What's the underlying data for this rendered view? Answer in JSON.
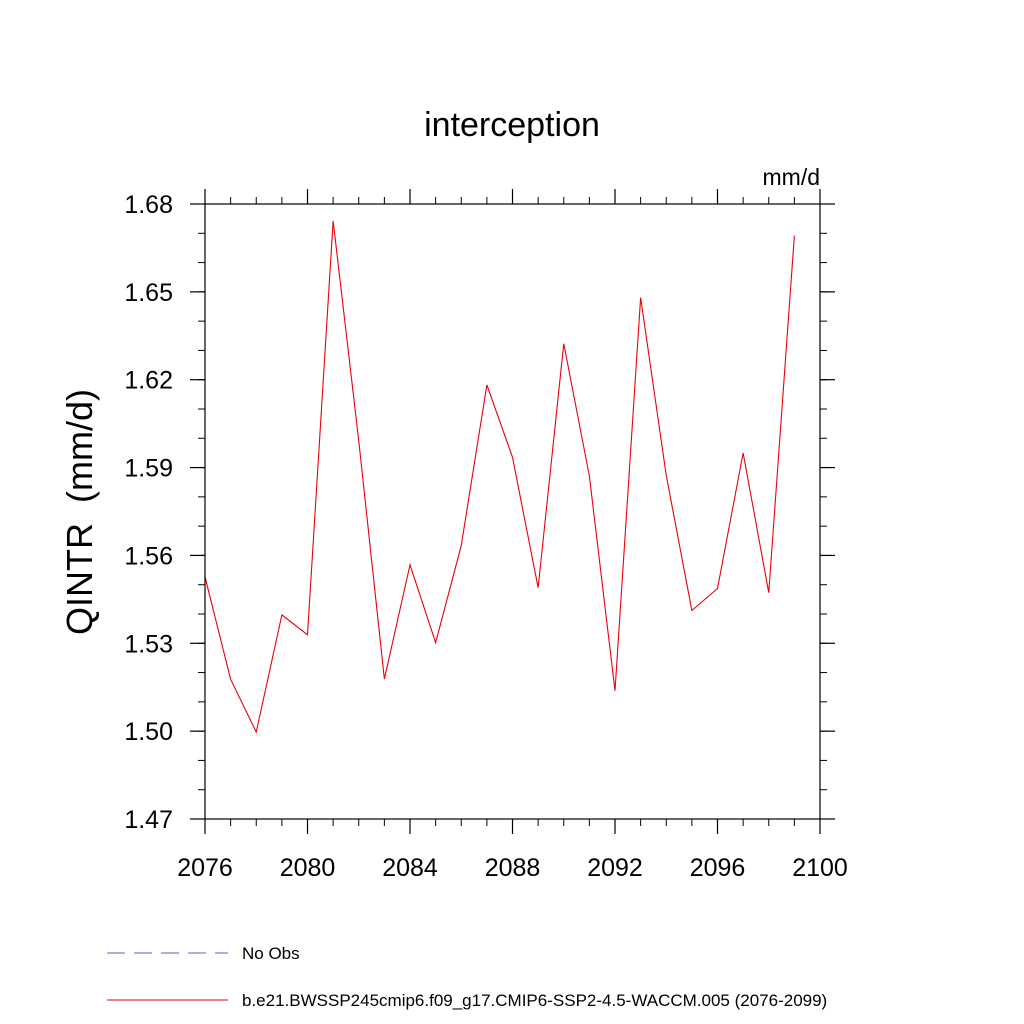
{
  "chart_data": {
    "type": "line",
    "title": "interception",
    "units_label": "mm/d",
    "ylabel": "QINTR  (mm/d)",
    "xlabel": "",
    "xlim": [
      2076,
      2100
    ],
    "ylim": [
      1.47,
      1.68
    ],
    "x_ticks": [
      "2076",
      "2080",
      "2084",
      "2088",
      "2092",
      "2096",
      "2100"
    ],
    "y_ticks": [
      "1.47",
      "1.50",
      "1.53",
      "1.56",
      "1.59",
      "1.62",
      "1.65",
      "1.68"
    ],
    "x_minor_step": 1,
    "y_minor_step": 0.01,
    "grid": false,
    "series": [
      {
        "name": "b.e21.BWSSP245cmip6.f09_g17.CMIP6-SSP2-4.5-WACCM.005 (2076-2099)",
        "color": "#e8000b",
        "style": "solid",
        "x": [
          2076,
          2077,
          2078,
          2079,
          2080,
          2081,
          2082,
          2083,
          2084,
          2085,
          2086,
          2087,
          2088,
          2089,
          2090,
          2091,
          2092,
          2093,
          2094,
          2095,
          2096,
          2097,
          2098,
          2099
        ],
        "values": [
          1.5527,
          1.5177,
          1.4997,
          1.5397,
          1.5329,
          1.6742,
          1.5992,
          1.5178,
          1.5568,
          1.5302,
          1.5634,
          1.6182,
          1.5935,
          1.549,
          1.6323,
          1.5871,
          1.5138,
          1.648,
          1.5873,
          1.5412,
          1.5487,
          1.595,
          1.5473,
          1.6692
        ]
      }
    ],
    "legend": [
      {
        "label": "No Obs",
        "color": "#6a5acd",
        "style": "dashed"
      },
      {
        "label": "b.e21.BWSSP245cmip6.f09_g17.CMIP6-SSP2-4.5-WACCM.005 (2076-2099)",
        "color": "#e8000b",
        "style": "solid"
      }
    ],
    "legend_position": "bottom-left"
  }
}
